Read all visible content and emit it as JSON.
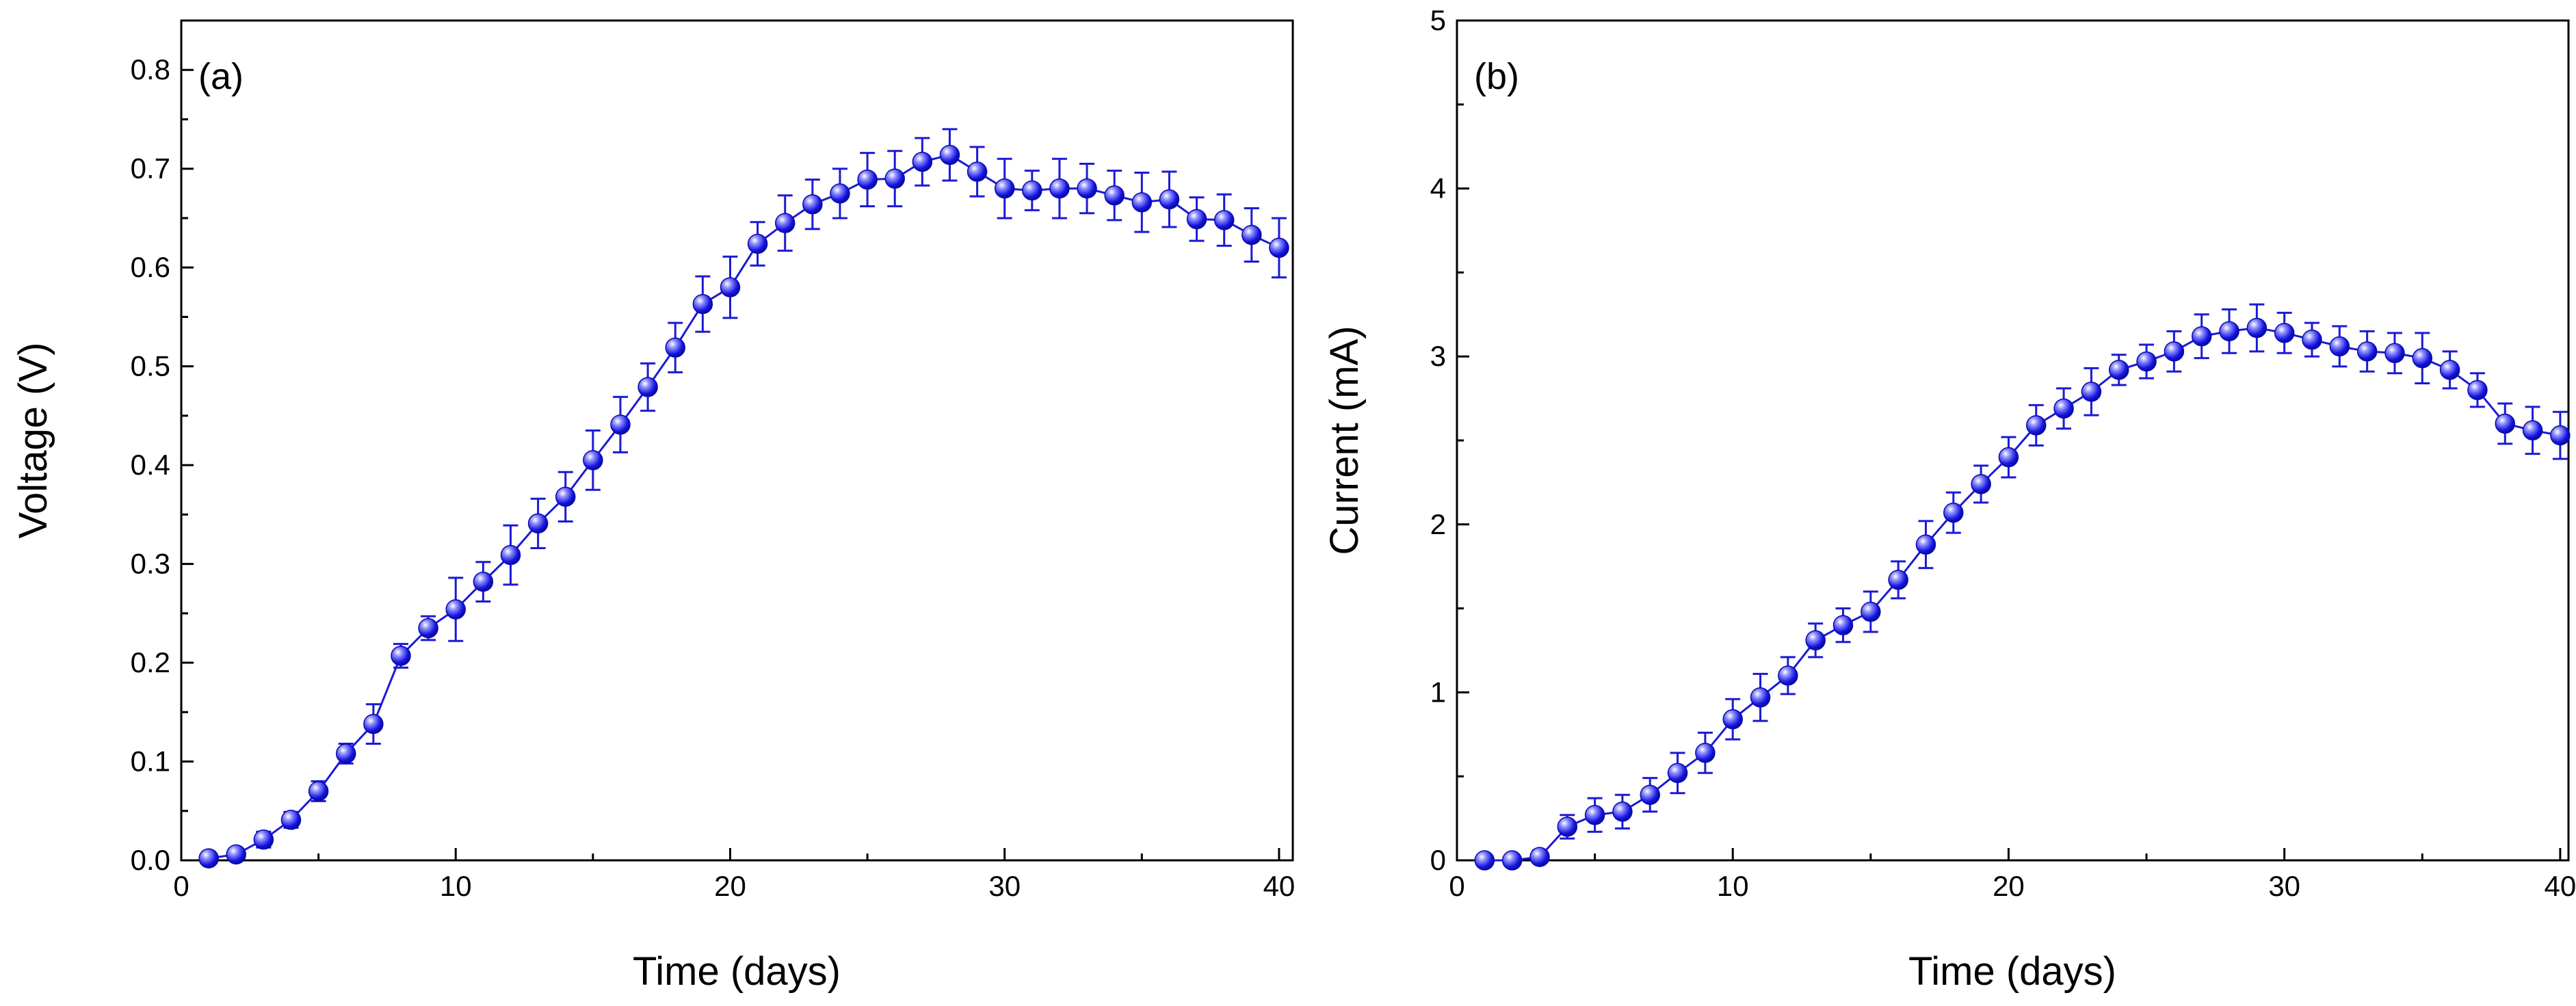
{
  "chart_data": [
    {
      "type": "scatter",
      "panel_label": "(a)",
      "xlabel": "Time (days)",
      "ylabel": "Voltage (V)",
      "xlim": [
        0,
        40.5
      ],
      "ylim": [
        0,
        0.85
      ],
      "xticks": [
        0,
        10,
        20,
        30,
        40
      ],
      "yticks": [
        0.0,
        0.1,
        0.2,
        0.3,
        0.4,
        0.5,
        0.6,
        0.7,
        0.8
      ],
      "xtick_labels": [
        "0",
        "10",
        "20",
        "30",
        "40"
      ],
      "ytick_labels": [
        "0.0",
        "0.1",
        "0.2",
        "0.3",
        "0.4",
        "0.5",
        "0.6",
        "0.7",
        "0.8"
      ],
      "color": "#1a1ad6",
      "x": [
        1,
        2,
        3,
        4,
        5,
        6,
        7,
        8,
        9,
        10,
        11,
        12,
        13,
        14,
        15,
        16,
        17,
        18,
        19,
        20,
        21,
        22,
        23,
        24,
        25,
        26,
        27,
        28,
        29,
        30,
        31,
        32,
        33,
        34,
        35,
        36,
        37,
        38,
        39,
        40
      ],
      "y": [
        0.002,
        0.006,
        0.021,
        0.041,
        0.07,
        0.108,
        0.138,
        0.207,
        0.235,
        0.254,
        0.282,
        0.309,
        0.341,
        0.368,
        0.405,
        0.441,
        0.479,
        0.519,
        0.563,
        0.58,
        0.624,
        0.645,
        0.664,
        0.675,
        0.689,
        0.69,
        0.707,
        0.714,
        0.697,
        0.68,
        0.678,
        0.68,
        0.68,
        0.673,
        0.666,
        0.669,
        0.649,
        0.648,
        0.633,
        0.62
      ],
      "err": [
        0.004,
        0.006,
        0.008,
        0.008,
        0.01,
        0.01,
        0.02,
        0.012,
        0.012,
        0.032,
        0.02,
        0.03,
        0.025,
        0.025,
        0.03,
        0.028,
        0.024,
        0.025,
        0.028,
        0.031,
        0.022,
        0.028,
        0.025,
        0.025,
        0.027,
        0.028,
        0.024,
        0.026,
        0.025,
        0.03,
        0.02,
        0.03,
        0.025,
        0.025,
        0.03,
        0.028,
        0.022,
        0.026,
        0.027,
        0.03
      ]
    },
    {
      "type": "scatter",
      "panel_label": "(b)",
      "xlabel": "Time (days)",
      "ylabel": "Current (mA)",
      "xlim": [
        0,
        40.3
      ],
      "ylim": [
        0,
        5
      ],
      "xticks": [
        0,
        10,
        20,
        30,
        40
      ],
      "yticks": [
        0,
        1,
        2,
        3,
        4,
        5
      ],
      "xtick_labels": [
        "0",
        "10",
        "20",
        "30",
        "40"
      ],
      "ytick_labels": [
        "0",
        "1",
        "2",
        "3",
        "4",
        "5"
      ],
      "color": "#1a1ad6",
      "x": [
        1,
        2,
        3,
        4,
        5,
        6,
        7,
        8,
        9,
        10,
        11,
        12,
        13,
        14,
        15,
        16,
        17,
        18,
        19,
        20,
        21,
        22,
        23,
        24,
        25,
        26,
        27,
        28,
        29,
        30,
        31,
        32,
        33,
        34,
        35,
        36,
        37,
        38,
        39,
        40
      ],
      "y": [
        0.0,
        0.0,
        0.02,
        0.2,
        0.27,
        0.29,
        0.39,
        0.52,
        0.64,
        0.84,
        0.97,
        1.1,
        1.31,
        1.4,
        1.48,
        1.67,
        1.88,
        2.07,
        2.24,
        2.4,
        2.59,
        2.69,
        2.79,
        2.92,
        2.97,
        3.03,
        3.12,
        3.15,
        3.17,
        3.14,
        3.1,
        3.06,
        3.03,
        3.02,
        2.99,
        2.92,
        2.8,
        2.6,
        2.56,
        2.53
      ],
      "err": [
        0.03,
        0.03,
        0.04,
        0.07,
        0.1,
        0.1,
        0.1,
        0.12,
        0.12,
        0.12,
        0.14,
        0.11,
        0.1,
        0.1,
        0.12,
        0.11,
        0.14,
        0.12,
        0.11,
        0.12,
        0.12,
        0.12,
        0.14,
        0.09,
        0.1,
        0.12,
        0.13,
        0.13,
        0.14,
        0.12,
        0.1,
        0.12,
        0.12,
        0.12,
        0.15,
        0.11,
        0.1,
        0.12,
        0.14,
        0.14
      ]
    }
  ]
}
